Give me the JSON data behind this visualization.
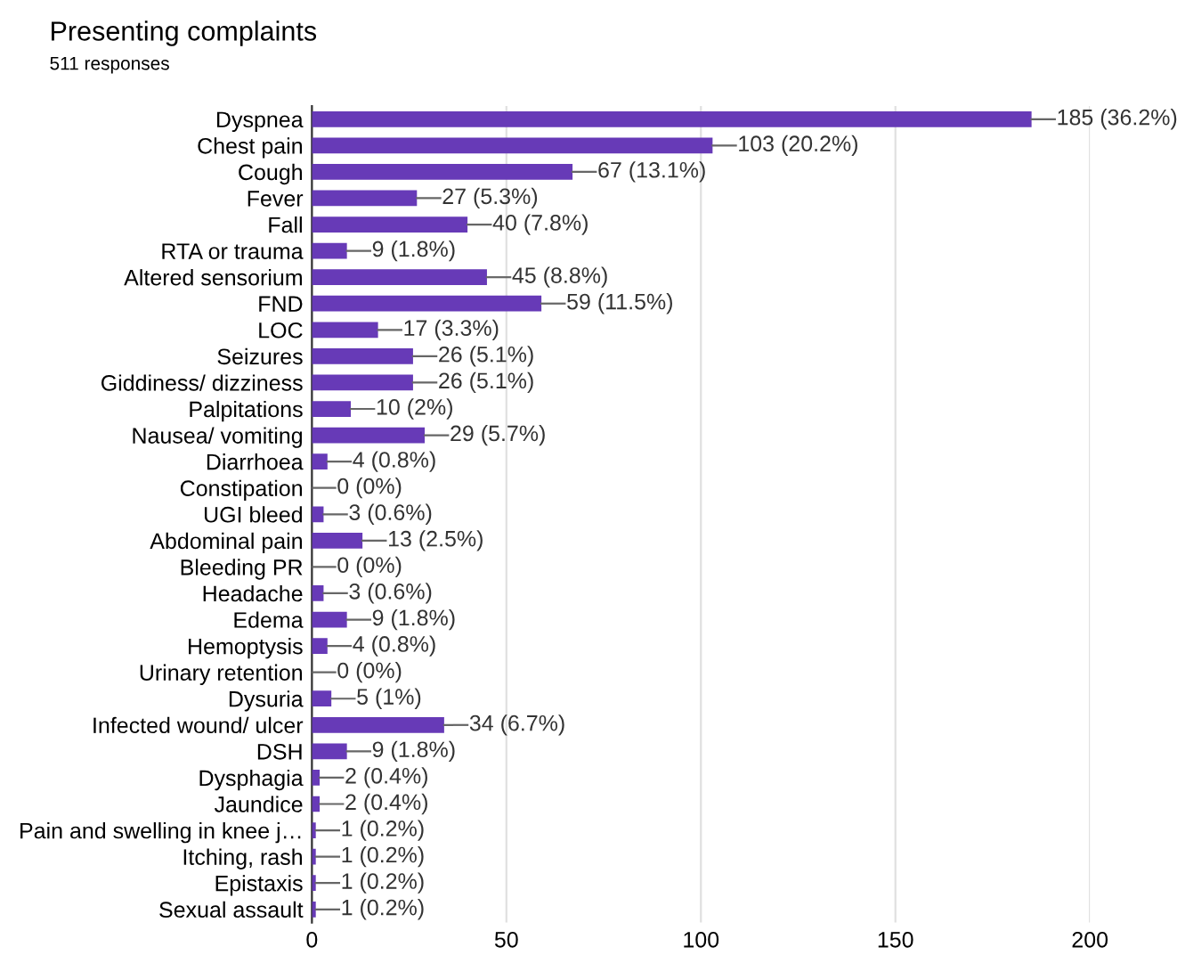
{
  "chart_data": {
    "type": "bar",
    "orientation": "horizontal",
    "title": "Presenting complaints",
    "subtitle": "511 responses",
    "categories": [
      "Dyspnea",
      "Chest pain",
      "Cough",
      "Fever",
      "Fall",
      "RTA or trauma",
      "Altered sensorium",
      "FND",
      "LOC",
      "Seizures",
      "Giddiness/ dizziness",
      "Palpitations",
      "Nausea/ vomiting",
      "Diarrhoea",
      "Constipation",
      "UGI bleed",
      "Abdominal pain",
      "Bleeding PR",
      "Headache",
      "Edema",
      "Hemoptysis",
      "Urinary retention",
      "Dysuria",
      "Infected wound/ ulcer",
      "DSH",
      "Dysphagia",
      "Jaundice",
      "Pain and swelling in knee j…",
      "Itching, rash",
      "Epistaxis",
      "Sexual assault"
    ],
    "values": [
      185,
      103,
      67,
      27,
      40,
      9,
      45,
      59,
      17,
      26,
      26,
      10,
      29,
      4,
      0,
      3,
      13,
      0,
      3,
      9,
      4,
      0,
      5,
      34,
      9,
      2,
      2,
      1,
      1,
      1,
      1
    ],
    "value_labels": [
      "185 (36.2%)",
      "103 (20.2%)",
      "67 (13.1%)",
      "27 (5.3%)",
      "40 (7.8%)",
      "9 (1.8%)",
      "45 (8.8%)",
      "59 (11.5%)",
      "17 (3.3%)",
      "26 (5.1%)",
      "26 (5.1%)",
      "10 (2%)",
      "29 (5.7%)",
      "4 (0.8%)",
      "0 (0%)",
      "3 (0.6%)",
      "13 (2.5%)",
      "0 (0%)",
      "3 (0.6%)",
      "9 (1.8%)",
      "4 (0.8%)",
      "0 (0%)",
      "5 (1%)",
      "34 (6.7%)",
      "9 (1.8%)",
      "2 (0.4%)",
      "2 (0.4%)",
      "1 (0.2%)",
      "1 (0.2%)",
      "1 (0.2%)",
      "1 (0.2%)"
    ],
    "color": "#673ab7",
    "xlim": [
      0,
      200
    ],
    "xticks": [
      0,
      50,
      100,
      150,
      200
    ],
    "grid": "x",
    "legend": false
  }
}
